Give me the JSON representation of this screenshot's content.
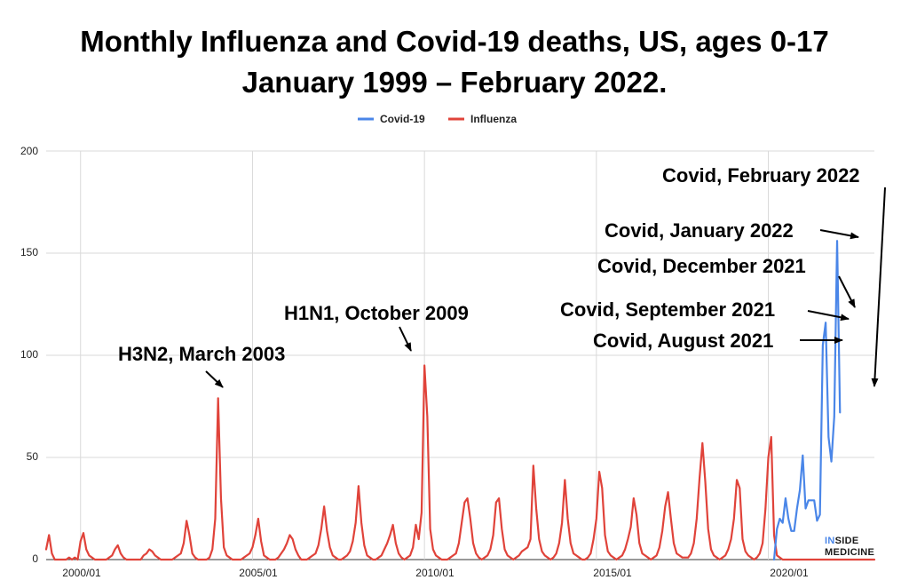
{
  "chart_data": {
    "type": "line",
    "title": "Monthly Influenza and Covid-19 deaths, US, ages 0-17",
    "subtitle": "January 1999 – February 2022.",
    "xlabel": "",
    "ylabel": "",
    "ylim": [
      0,
      200
    ],
    "yticks": [
      "0",
      "50",
      "100",
      "150",
      "200"
    ],
    "xticks": [
      {
        "label": "2000/01",
        "x": "2000-01"
      },
      {
        "label": "2005/01",
        "x": "2005-01"
      },
      {
        "label": "2010/01",
        "x": "2010-01"
      },
      {
        "label": "2015/01",
        "x": "2015-01"
      },
      {
        "label": "2020/01",
        "x": "2020-01"
      }
    ],
    "grid": true,
    "legend_position": "top-center",
    "start_month": "1999-01",
    "series": [
      {
        "name": "Covid-19",
        "color": "#4a86e8",
        "start": "2020-03",
        "values": [
          0,
          15,
          20,
          18,
          30,
          20,
          14,
          14,
          25,
          34,
          51,
          25,
          29,
          29,
          29,
          19,
          22,
          105,
          116,
          60,
          48,
          70,
          156,
          72
        ]
      },
      {
        "name": "Influenza",
        "color": "#e0433a",
        "start": "1999-01",
        "values": [
          5,
          12,
          3,
          0,
          0,
          0,
          0,
          0,
          1,
          0,
          1,
          0,
          9,
          13,
          5,
          2,
          1,
          0,
          0,
          0,
          0,
          0,
          1,
          2,
          5,
          7,
          3,
          1,
          0,
          0,
          0,
          0,
          0,
          0,
          2,
          3,
          5,
          4,
          2,
          1,
          0,
          0,
          0,
          0,
          0,
          1,
          2,
          3,
          8,
          19,
          12,
          3,
          1,
          0,
          0,
          0,
          0,
          1,
          5,
          20,
          79,
          30,
          6,
          2,
          1,
          0,
          0,
          0,
          0,
          1,
          2,
          3,
          6,
          12,
          20,
          9,
          2,
          1,
          0,
          0,
          0,
          1,
          3,
          5,
          8,
          12,
          10,
          5,
          2,
          0,
          0,
          0,
          1,
          2,
          3,
          7,
          15,
          26,
          14,
          6,
          2,
          1,
          0,
          0,
          1,
          2,
          4,
          9,
          18,
          36,
          18,
          7,
          2,
          1,
          0,
          0,
          1,
          2,
          5,
          8,
          12,
          17,
          8,
          3,
          1,
          0,
          1,
          2,
          6,
          17,
          10,
          23,
          95,
          70,
          15,
          5,
          2,
          1,
          0,
          0,
          0,
          1,
          2,
          3,
          8,
          18,
          28,
          30,
          20,
          8,
          3,
          1,
          0,
          1,
          2,
          5,
          12,
          28,
          30,
          15,
          5,
          2,
          1,
          0,
          1,
          2,
          4,
          5,
          6,
          10,
          46,
          25,
          10,
          4,
          2,
          1,
          0,
          1,
          3,
          8,
          18,
          39,
          20,
          8,
          3,
          2,
          1,
          0,
          0,
          1,
          3,
          10,
          20,
          43,
          35,
          12,
          4,
          2,
          1,
          0,
          1,
          2,
          5,
          10,
          16,
          30,
          22,
          8,
          3,
          2,
          1,
          0,
          1,
          2,
          6,
          14,
          26,
          33,
          20,
          8,
          3,
          2,
          1,
          1,
          1,
          3,
          8,
          20,
          40,
          57,
          38,
          15,
          5,
          2,
          1,
          0,
          1,
          2,
          5,
          10,
          20,
          39,
          35,
          10,
          4,
          2,
          1,
          0,
          1,
          3,
          8,
          25,
          50,
          60,
          12,
          2,
          1,
          0,
          0,
          0,
          0,
          0,
          0,
          0,
          0,
          0,
          0,
          0,
          0,
          0,
          0,
          0,
          0,
          0,
          0,
          0,
          0,
          0,
          0,
          0,
          0,
          0,
          0,
          0,
          0,
          0,
          0,
          0,
          0,
          0
        ]
      }
    ],
    "annotations": [
      {
        "text": "H3N2, March 2003"
      },
      {
        "text": "H1N1, October 2009"
      },
      {
        "text": "Covid, February 2022"
      },
      {
        "text": "Covid, January 2022"
      },
      {
        "text": "Covid, December 2021"
      },
      {
        "text": "Covid, September 2021"
      },
      {
        "text": "Covid, August 2021"
      }
    ]
  },
  "logo": {
    "line1": "INSIDE",
    "line2": "MEDICINE",
    "accent_color": "#4a86e8"
  }
}
